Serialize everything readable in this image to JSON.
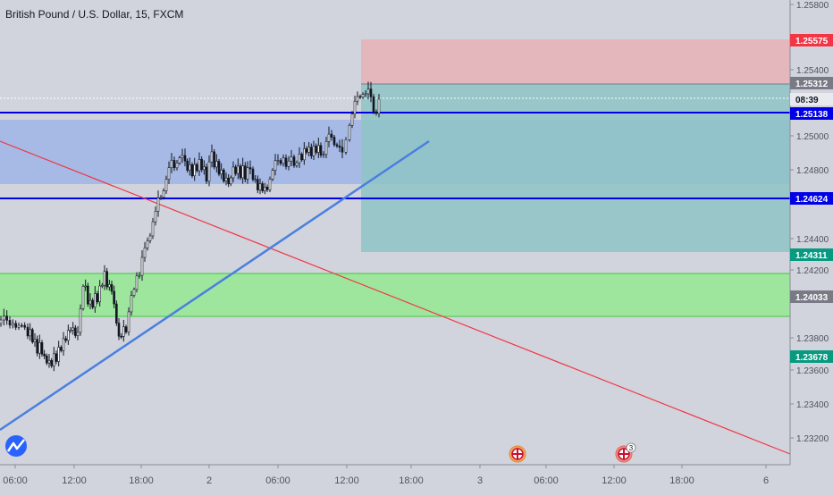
{
  "header": {
    "title": "British Pound / U.S. Dollar, 15, FXCM"
  },
  "chart_data": {
    "type": "candlestick",
    "title": "British Pound / U.S. Dollar, 15, FXCM",
    "ylim": [
      1.2308,
      1.2587
    ],
    "y_ticks": [
      "1.25800",
      "1.25400",
      "1.25000",
      "1.24800",
      "1.24400",
      "1.24200",
      "1.23800",
      "1.23600",
      "1.23400",
      "1.23200"
    ],
    "x_ticks": [
      "06:00",
      "12:00",
      "18:00",
      "2",
      "06:00",
      "12:00",
      "18:00",
      "3",
      "06:00",
      "12:00",
      "18:00",
      "6"
    ],
    "price_tags": [
      {
        "label": "1.25575",
        "value": 1.25575,
        "color": "#f23645"
      },
      {
        "label": "1.25312",
        "value": 1.25312,
        "color": "#787b86"
      },
      {
        "label": "08:39",
        "value": 1.25223,
        "color": "#787b86"
      },
      {
        "label": "1.25138",
        "value": 1.25138,
        "color": "#0000e6"
      },
      {
        "label": "1.24624",
        "value": 1.24624,
        "color": "#0000e6"
      },
      {
        "label": "1.24311",
        "value": 1.24311,
        "color": "#089981"
      },
      {
        "label": "1.24033",
        "value": 1.24033,
        "color": "#787b86"
      },
      {
        "label": "1.23678",
        "value": 1.23678,
        "color": "#089981"
      }
    ],
    "horizontal_lines": [
      1.25138,
      1.24624
    ],
    "zones": [
      {
        "name": "blue-zone",
        "from": 1.2507,
        "to": 1.2469,
        "color": "#9fb5e6"
      },
      {
        "name": "green-zone",
        "from": 1.2418,
        "to": 1.2393,
        "color": "#9ee69e"
      },
      {
        "name": "stop-zone",
        "from": 1.25575,
        "to": 1.25312,
        "color": "#e8b4b8"
      },
      {
        "name": "target-zone",
        "from": 1.25312,
        "to": 1.24311,
        "color": "#8fc4c6"
      }
    ],
    "event_badge_count": "3"
  }
}
